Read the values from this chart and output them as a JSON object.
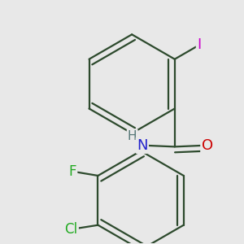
{
  "background_color": "#e8e8e8",
  "bond_color": "#2d4a2d",
  "bond_width": 1.6,
  "label_fontsize": 12,
  "atom_colors": {
    "I": "#cc00cc",
    "O": "#cc0000",
    "N": "#2222cc",
    "F": "#22aa22",
    "Cl": "#22aa22",
    "H": "#557777"
  },
  "figsize": [
    3.0,
    3.0
  ],
  "dpi": 100
}
